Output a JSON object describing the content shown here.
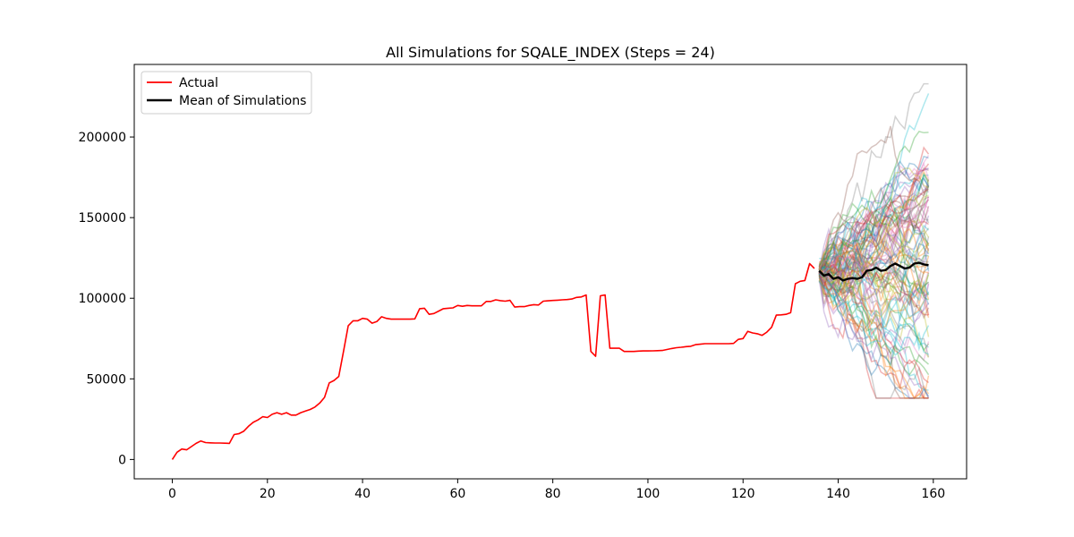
{
  "chart_data": {
    "type": "line",
    "title": "All Simulations for SQALE_INDEX (Steps = 24)",
    "xlabel": "",
    "ylabel": "",
    "xlim": [
      -8,
      167
    ],
    "ylim": [
      -12000,
      245000
    ],
    "x_ticks": [
      0,
      20,
      40,
      60,
      80,
      100,
      120,
      140,
      160
    ],
    "y_ticks": [
      0,
      50000,
      100000,
      150000,
      200000
    ],
    "legend": {
      "placement": "top-left",
      "entries": [
        {
          "label": "Actual",
          "color": "#ff0000"
        },
        {
          "label": "Mean of Simulations",
          "color": "#000000"
        }
      ]
    },
    "grid": false,
    "series": [
      {
        "name": "Actual",
        "color": "#ff0000",
        "x": [
          0,
          1,
          2,
          3,
          4,
          5,
          6,
          7,
          8,
          9,
          10,
          11,
          12,
          13,
          14,
          15,
          16,
          17,
          18,
          19,
          20,
          21,
          22,
          23,
          24,
          25,
          26,
          27,
          28,
          29,
          30,
          31,
          32,
          33,
          34,
          35,
          36,
          37,
          38,
          39,
          40,
          41,
          42,
          43,
          44,
          45,
          46,
          47,
          48,
          49,
          50,
          51,
          52,
          53,
          54,
          55,
          56,
          57,
          58,
          59,
          60,
          61,
          62,
          63,
          64,
          65,
          66,
          67,
          68,
          69,
          70,
          71,
          72,
          73,
          74,
          75,
          76,
          77,
          78,
          79,
          80,
          81,
          82,
          83,
          84,
          85,
          86,
          87,
          88,
          89,
          90,
          91,
          92,
          93,
          94,
          95,
          96,
          97,
          98,
          99,
          100,
          101,
          102,
          103,
          104,
          105,
          106,
          107,
          108,
          109,
          110,
          111,
          112,
          113,
          114,
          115,
          116,
          117,
          118,
          119,
          120,
          121,
          122,
          123,
          124,
          125,
          126,
          127,
          128,
          129,
          130,
          131,
          132,
          133,
          134,
          135
        ],
        "y": [
          0,
          4500,
          6500,
          6000,
          8000,
          10000,
          11500,
          10500,
          10300,
          10200,
          10200,
          10100,
          10000,
          15500,
          16000,
          17500,
          20500,
          23000,
          24500,
          26500,
          26000,
          28000,
          29000,
          28000,
          29000,
          27500,
          27500,
          29000,
          30000,
          31000,
          32500,
          35000,
          38500,
          47500,
          49000,
          51500,
          67000,
          83000,
          86000,
          86000,
          87500,
          87000,
          84500,
          85500,
          88500,
          87500,
          87000,
          87000,
          87000,
          87000,
          87000,
          87200,
          93500,
          93800,
          90000,
          90500,
          92000,
          93500,
          93800,
          94000,
          95500,
          95000,
          95500,
          95300,
          95300,
          95300,
          98000,
          98000,
          99000,
          98500,
          98200,
          98700,
          94500,
          94800,
          94800,
          95500,
          96000,
          95800,
          98200,
          98400,
          98600,
          98800,
          99000,
          99200,
          99500,
          100500,
          100800,
          102000,
          67000,
          64000,
          101500,
          102000,
          69000,
          69000,
          69000,
          67000,
          67000,
          67000,
          67200,
          67300,
          67300,
          67400,
          67500,
          67600,
          68200,
          68800,
          69300,
          69600,
          70000,
          70200,
          71200,
          71500,
          71800,
          71800,
          71800,
          71800,
          71800,
          71800,
          72000,
          74500,
          75000,
          79500,
          78500,
          78000,
          77000,
          79000,
          82000,
          89500,
          89700,
          90000,
          91000,
          109000,
          110500,
          111000,
          121500,
          118500
        ]
      },
      {
        "name": "Mean of Simulations",
        "color": "#000000",
        "x": [
          136,
          137,
          138,
          139,
          140,
          141,
          142,
          143,
          144,
          145,
          146,
          147,
          148,
          149,
          150,
          151,
          152,
          153,
          154,
          155,
          156,
          157,
          158,
          159
        ],
        "y": [
          117000,
          114000,
          115000,
          112000,
          113000,
          111000,
          112000,
          112500,
          112000,
          113000,
          117000,
          117500,
          119000,
          117000,
          117500,
          120000,
          121500,
          120000,
          118500,
          119000,
          121500,
          122000,
          121000,
          120500
        ]
      }
    ],
    "simulations": {
      "count": 100,
      "x_start": 136,
      "x_end": 159,
      "start_value": 117000,
      "band_at_end": [
        38000,
        233000
      ],
      "alpha": 0.35,
      "palette": [
        "#1f77b4",
        "#ff7f0e",
        "#2ca02c",
        "#d62728",
        "#9467bd",
        "#8c564b",
        "#e377c2",
        "#7f7f7f",
        "#bcbd22",
        "#17becf"
      ]
    }
  }
}
